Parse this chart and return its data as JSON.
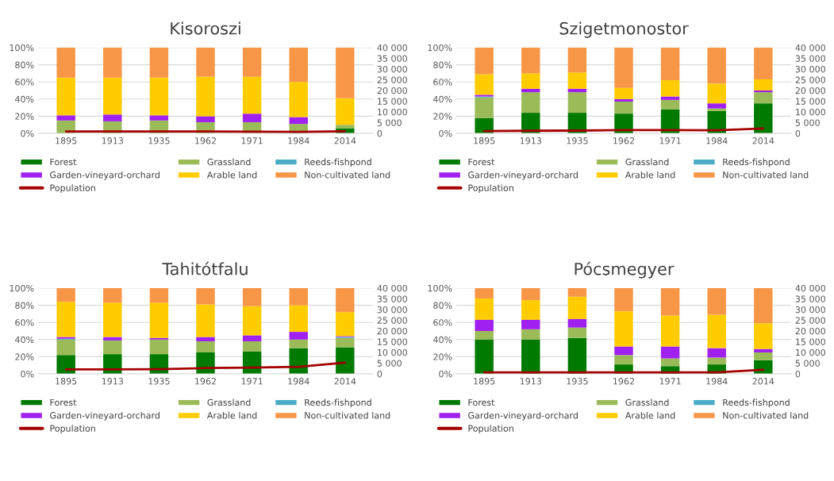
{
  "chart_data": [
    {
      "type": "bar",
      "title": "Kisoroszi",
      "stacked": true,
      "categories": [
        "1895",
        "1913",
        "1935",
        "1962",
        "1971",
        "1984",
        "2014"
      ],
      "series": [
        {
          "name": "Forest",
          "color": "#007a00",
          "values": [
            0,
            0,
            0,
            0,
            0,
            0,
            6
          ]
        },
        {
          "name": "Grassland",
          "color": "#9bbb59",
          "values": [
            15,
            14,
            15,
            13,
            13,
            11,
            4
          ]
        },
        {
          "name": "Reeds-fishpond",
          "color": "#4bacc6",
          "values": [
            0,
            0,
            0,
            0,
            0,
            0,
            0
          ]
        },
        {
          "name": "Garden-vineyard-orchard",
          "color": "#a020f0",
          "values": [
            6,
            8,
            6,
            7,
            10,
            8,
            0
          ]
        },
        {
          "name": "Arable land",
          "color": "#ffcc00",
          "values": [
            44,
            43,
            44,
            46,
            43,
            41,
            31
          ]
        },
        {
          "name": "Non-cultivated land",
          "color": "#f79646",
          "values": [
            35,
            35,
            35,
            34,
            34,
            40,
            59
          ]
        },
        {
          "name": "Population",
          "color": "#a50000",
          "type": "line",
          "axis": "y2",
          "values": [
            900,
            900,
            900,
            900,
            800,
            700,
            1000
          ]
        }
      ],
      "ylim": [
        0,
        100
      ],
      "yticks": [
        {
          "value": 0,
          "label": "0%"
        },
        {
          "value": 20,
          "label": "20%"
        },
        {
          "value": 40,
          "label": "40%"
        },
        {
          "value": 60,
          "label": "60%"
        },
        {
          "value": 80,
          "label": "80%"
        },
        {
          "value": 100,
          "label": "100%"
        }
      ],
      "y2lim": [
        0,
        40000
      ],
      "y2ticks": [
        0,
        {
          "value": 5000,
          "label": "5 000"
        },
        {
          "value": 10000,
          "label": "10 000"
        },
        {
          "value": 15000,
          "label": "15 000"
        },
        {
          "value": 20000,
          "label": "20 000"
        },
        {
          "value": 25000,
          "label": "25 000"
        },
        {
          "value": 30000,
          "label": "30 000"
        },
        {
          "value": 35000,
          "label": "35 000"
        },
        {
          "value": 40000,
          "label": "40 000"
        }
      ],
      "grid": "y",
      "legend": "bottom"
    },
    {
      "type": "bar",
      "title": "Szigetmonostor",
      "stacked": true,
      "categories": [
        "1895",
        "1913",
        "1935",
        "1962",
        "1971",
        "1984",
        "2014"
      ],
      "series": [
        {
          "name": "Forest",
          "color": "#007a00",
          "values": [
            18,
            24,
            24,
            23,
            28,
            26,
            35
          ]
        },
        {
          "name": "Grassland",
          "color": "#9bbb59",
          "values": [
            24,
            24,
            24,
            14,
            11,
            3,
            13
          ]
        },
        {
          "name": "Reeds-fishpond",
          "color": "#4bacc6",
          "values": [
            1,
            0,
            0,
            0,
            0,
            0,
            0
          ]
        },
        {
          "name": "Garden-vineyard-orchard",
          "color": "#a020f0",
          "values": [
            2,
            4,
            4,
            3,
            4,
            6,
            2
          ]
        },
        {
          "name": "Arable land",
          "color": "#ffcc00",
          "values": [
            24,
            18,
            19,
            13,
            19,
            23,
            13
          ]
        },
        {
          "name": "Non-cultivated land",
          "color": "#f79646",
          "values": [
            31,
            30,
            29,
            47,
            38,
            42,
            37
          ]
        },
        {
          "name": "Population",
          "color": "#a50000",
          "type": "line",
          "axis": "y2",
          "values": [
            1100,
            1200,
            1300,
            1500,
            1500,
            1400,
            2300
          ]
        }
      ],
      "ylim": [
        0,
        100
      ],
      "yticks": [
        {
          "value": 0,
          "label": "0%"
        },
        {
          "value": 20,
          "label": "20%"
        },
        {
          "value": 40,
          "label": "40%"
        },
        {
          "value": 60,
          "label": "60%"
        },
        {
          "value": 80,
          "label": "80%"
        },
        {
          "value": 100,
          "label": "100%"
        }
      ],
      "y2lim": [
        0,
        40000
      ],
      "y2ticks": [
        0,
        {
          "value": 5000,
          "label": "5 000"
        },
        {
          "value": 10000,
          "label": "10 000"
        },
        {
          "value": 15000,
          "label": "15 000"
        },
        {
          "value": 20000,
          "label": "20 000"
        },
        {
          "value": 25000,
          "label": "25 000"
        },
        {
          "value": 30000,
          "label": "30 000"
        },
        {
          "value": 35000,
          "label": "35 000"
        },
        {
          "value": 40000,
          "label": "40 000"
        }
      ],
      "grid": "y",
      "legend": "bottom"
    },
    {
      "type": "bar",
      "title": "Tahitótfalu",
      "stacked": true,
      "categories": [
        "1895",
        "1913",
        "1935",
        "1962",
        "1971",
        "1984",
        "2014"
      ],
      "series": [
        {
          "name": "Forest",
          "color": "#007a00",
          "values": [
            22,
            23,
            23,
            25,
            26,
            30,
            31
          ]
        },
        {
          "name": "Grassland",
          "color": "#9bbb59",
          "values": [
            18,
            16,
            17,
            13,
            12,
            10,
            11
          ]
        },
        {
          "name": "Reeds-fishpond",
          "color": "#4bacc6",
          "values": [
            1,
            0,
            0,
            0,
            0,
            0,
            1
          ]
        },
        {
          "name": "Garden-vineyard-orchard",
          "color": "#a020f0",
          "values": [
            2,
            4,
            2,
            5,
            7,
            9,
            1
          ]
        },
        {
          "name": "Arable land",
          "color": "#ffcc00",
          "values": [
            41,
            40,
            41,
            38,
            34,
            31,
            28
          ]
        },
        {
          "name": "Non-cultivated land",
          "color": "#f79646",
          "values": [
            16,
            17,
            17,
            19,
            21,
            20,
            28
          ]
        },
        {
          "name": "Population",
          "color": "#a50000",
          "type": "line",
          "axis": "y2",
          "values": [
            2100,
            2100,
            2200,
            2700,
            2900,
            3300,
            5200
          ]
        }
      ],
      "ylim": [
        0,
        100
      ],
      "yticks": [
        {
          "value": 0,
          "label": "0%"
        },
        {
          "value": 20,
          "label": "20%"
        },
        {
          "value": 40,
          "label": "40%"
        },
        {
          "value": 60,
          "label": "60%"
        },
        {
          "value": 80,
          "label": "80%"
        },
        {
          "value": 100,
          "label": "100%"
        }
      ],
      "y2lim": [
        0,
        40000
      ],
      "y2ticks": [
        0,
        {
          "value": 5000,
          "label": "5 000"
        },
        {
          "value": 10000,
          "label": "10 000"
        },
        {
          "value": 15000,
          "label": "15 000"
        },
        {
          "value": 20000,
          "label": "20 000"
        },
        {
          "value": 25000,
          "label": "25 000"
        },
        {
          "value": 30000,
          "label": "30 000"
        },
        {
          "value": 35000,
          "label": "35 000"
        },
        {
          "value": 40000,
          "label": "40 000"
        }
      ],
      "grid": "y",
      "legend": "bottom"
    },
    {
      "type": "bar",
      "title": "Pócsmegyer",
      "stacked": true,
      "categories": [
        "1895",
        "1913",
        "1935",
        "1962",
        "1971",
        "1984",
        "2014"
      ],
      "series": [
        {
          "name": "Forest",
          "color": "#007a00",
          "values": [
            40,
            40,
            42,
            11,
            9,
            11,
            16
          ]
        },
        {
          "name": "Grassland",
          "color": "#9bbb59",
          "values": [
            10,
            12,
            12,
            11,
            9,
            8,
            9
          ]
        },
        {
          "name": "Reeds-fishpond",
          "color": "#4bacc6",
          "values": [
            0,
            0,
            0,
            0,
            0,
            0,
            0
          ]
        },
        {
          "name": "Garden-vineyard-orchard",
          "color": "#a020f0",
          "values": [
            13,
            11,
            10,
            10,
            14,
            11,
            4
          ]
        },
        {
          "name": "Arable land",
          "color": "#ffcc00",
          "values": [
            25,
            23,
            26,
            41,
            36,
            39,
            30
          ]
        },
        {
          "name": "Non-cultivated land",
          "color": "#f79646",
          "values": [
            12,
            14,
            10,
            27,
            32,
            31,
            41
          ]
        },
        {
          "name": "Population",
          "color": "#a50000",
          "type": "line",
          "axis": "y2",
          "values": [
            700,
            700,
            700,
            700,
            700,
            700,
            1900
          ]
        }
      ],
      "ylim": [
        0,
        100
      ],
      "yticks": [
        {
          "value": 0,
          "label": "0%"
        },
        {
          "value": 20,
          "label": "20%"
        },
        {
          "value": 40,
          "label": "40%"
        },
        {
          "value": 60,
          "label": "60%"
        },
        {
          "value": 80,
          "label": "80%"
        },
        {
          "value": 100,
          "label": "100%"
        }
      ],
      "y2lim": [
        0,
        40000
      ],
      "y2ticks": [
        0,
        {
          "value": 5000,
          "label": "5 000"
        },
        {
          "value": 10000,
          "label": "10 000"
        },
        {
          "value": 15000,
          "label": "15 000"
        },
        {
          "value": 20000,
          "label": "20 000"
        },
        {
          "value": 25000,
          "label": "25 000"
        },
        {
          "value": 30000,
          "label": "30 000"
        },
        {
          "value": 35000,
          "label": "35 000"
        },
        {
          "value": 40000,
          "label": "40 000"
        }
      ],
      "grid": "y",
      "legend": "bottom"
    }
  ]
}
